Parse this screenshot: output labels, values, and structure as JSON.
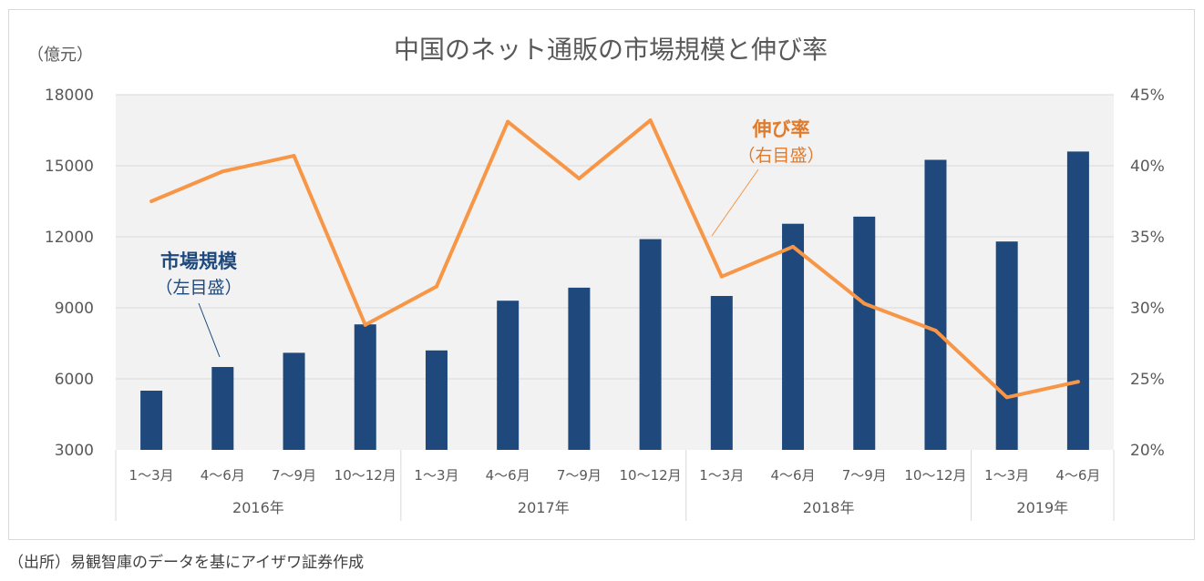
{
  "colors": {
    "bar": "#1f497d",
    "line": "#f79646",
    "plot_bg": "#f2f2f2",
    "grid": "#d9d9d9",
    "text": "#595959",
    "title": "#595959",
    "line_label": "#e07b2c",
    "bar_label": "#1f497d"
  },
  "source": "（出所）易観智庫のデータを基にアイザワ証券作成",
  "chart_data": {
    "type": "bar",
    "title": "中国のネット通販の市場規模と伸び率",
    "ylabel_left": "（億元）",
    "ylim_left": [
      3000,
      18000
    ],
    "yticks_left": [
      "18000",
      "15000",
      "12000",
      "9000",
      "6000",
      "3000"
    ],
    "ylim_right": [
      0.2,
      0.45
    ],
    "yticks_right": [
      "45%",
      "40%",
      "35%",
      "30%",
      "25%",
      "20%"
    ],
    "grid": true,
    "categories": [
      "1～3月",
      "4～6月",
      "7～9月",
      "10～12月",
      "1～3月",
      "4～6月",
      "7～9月",
      "10～12月",
      "1～3月",
      "4～6月",
      "7～9月",
      "10～12月",
      "1～3月",
      "4～6月"
    ],
    "groups": [
      {
        "label": "2016年",
        "start": 0,
        "end": 3
      },
      {
        "label": "2017年",
        "start": 4,
        "end": 7
      },
      {
        "label": "2018年",
        "start": 8,
        "end": 11
      },
      {
        "label": "2019年",
        "start": 12,
        "end": 13
      }
    ],
    "series": [
      {
        "name": "市場規模",
        "axis": "left",
        "kind": "bar",
        "values": [
          5500,
          6500,
          7100,
          8300,
          7200,
          9300,
          9850,
          11900,
          9500,
          12550,
          12850,
          15250,
          11800,
          15600
        ]
      },
      {
        "name": "伸び率",
        "axis": "right",
        "kind": "line",
        "values": [
          0.375,
          0.396,
          0.407,
          0.288,
          0.315,
          0.431,
          0.391,
          0.432,
          0.322,
          0.343,
          0.303,
          0.284,
          0.237,
          0.248
        ]
      }
    ],
    "annotations": [
      {
        "series": "市場規模",
        "name": "市場規模",
        "sub": "（左目盛）"
      },
      {
        "series": "伸び率",
        "name": "伸び率",
        "sub": "（右目盛）"
      }
    ]
  }
}
